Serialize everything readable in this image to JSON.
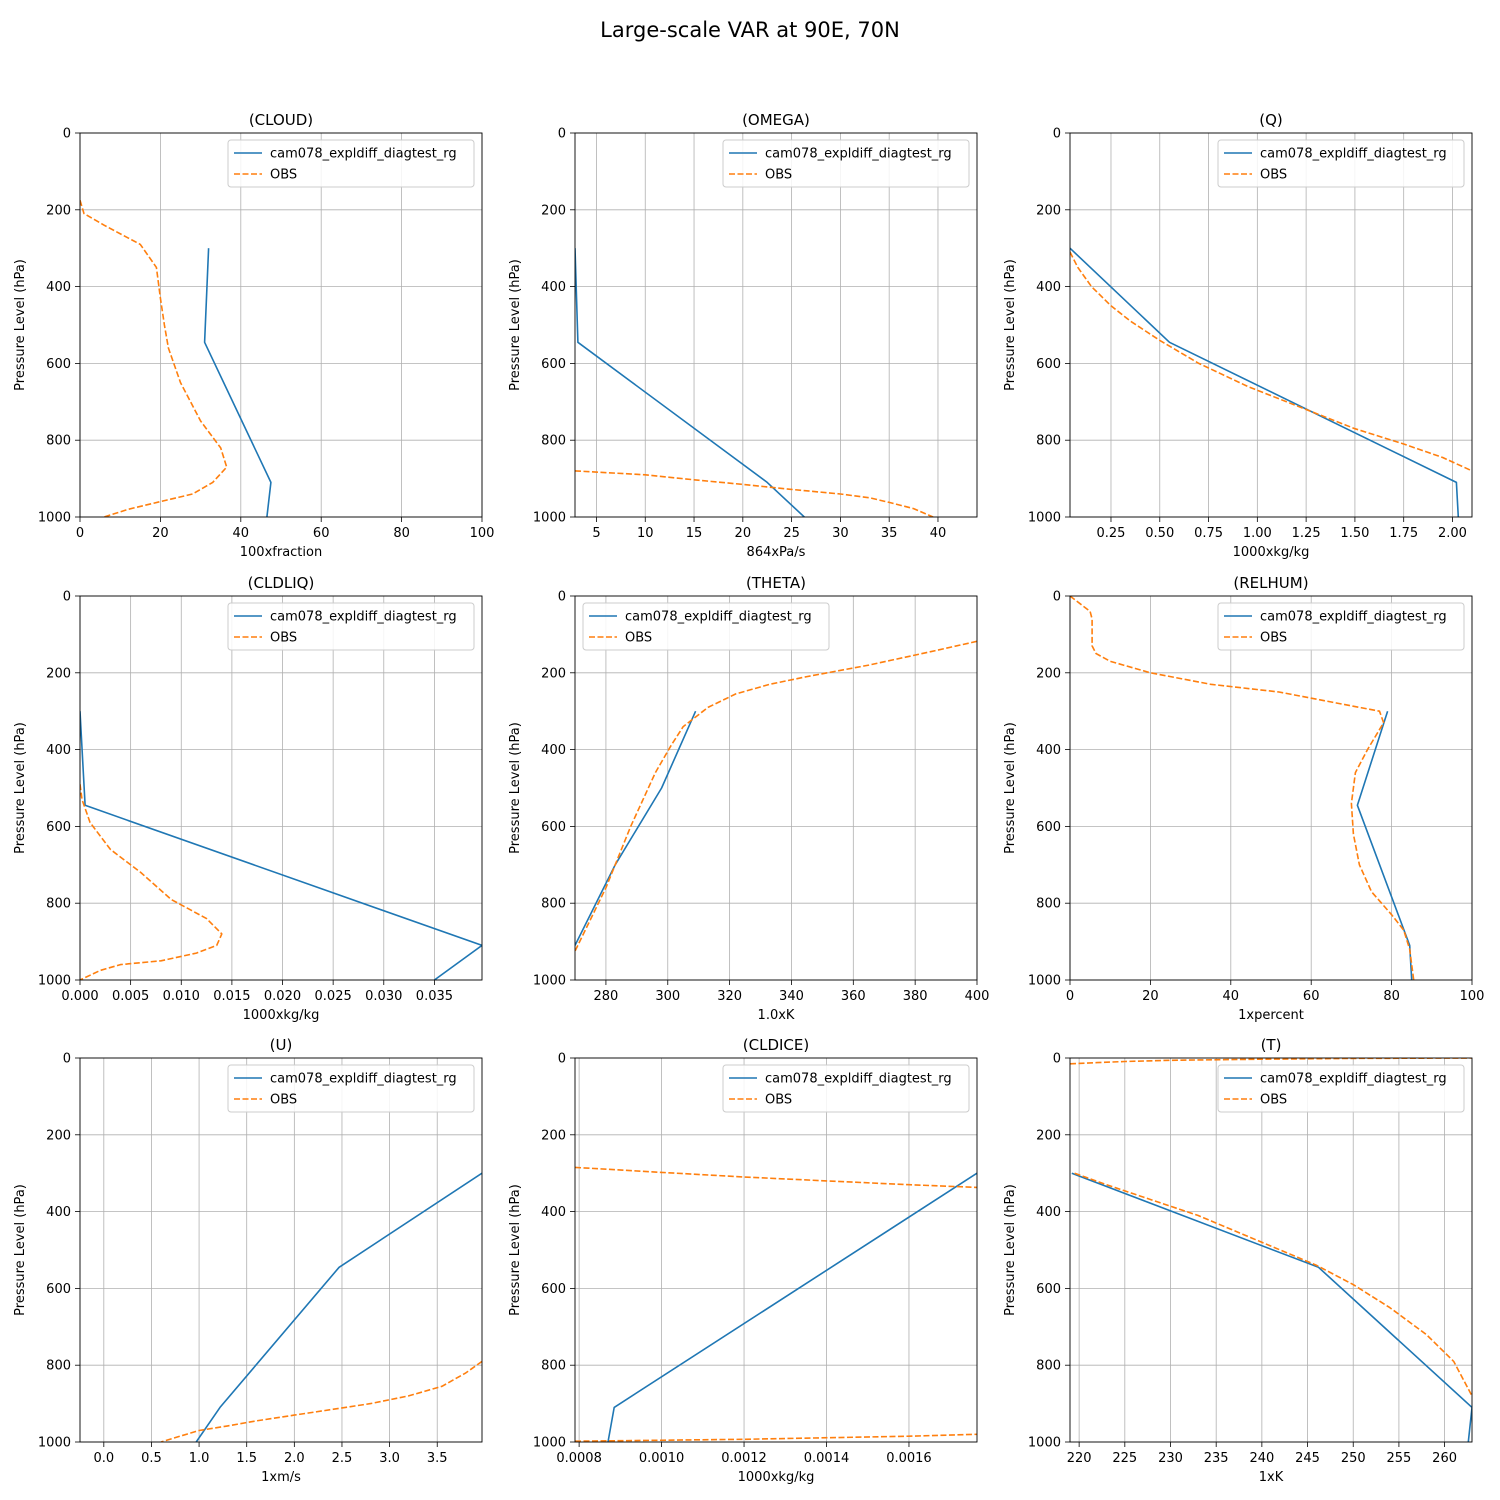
{
  "title": "Large-scale VAR at 90E, 70N",
  "colors": {
    "model": "#1f77b4",
    "obs": "#ff7f0e",
    "grid": "#b0b0b0"
  },
  "chart_data": [
    {
      "type": "line",
      "title": "(CLOUD)",
      "xlabel": "100xfraction",
      "ylabel": "Pressure Level (hPa)",
      "xlim": [
        0,
        100
      ],
      "ylim": [
        1000,
        0
      ],
      "xticks": [
        0,
        20,
        40,
        60,
        80,
        100
      ],
      "xtick_labels": [
        "0",
        "20",
        "40",
        "60",
        "80",
        "100"
      ],
      "yticks": [
        0,
        200,
        400,
        600,
        800,
        1000
      ],
      "ytick_labels": [
        "0",
        "200",
        "400",
        "600",
        "800",
        "1000"
      ],
      "legend_loc": "upper right",
      "series": [
        {
          "name": "cam078_expldiff_diagtest_rg",
          "style": "solid",
          "x": [
            32,
            31,
            47.5,
            46.5
          ],
          "y": [
            300,
            545,
            910,
            1000
          ]
        },
        {
          "name": "OBS",
          "style": "dashed",
          "x": [
            0,
            1,
            6,
            15,
            19,
            20,
            21,
            22,
            25,
            30,
            35,
            36.5,
            33,
            28,
            20,
            12,
            6
          ],
          "y": [
            175,
            210,
            240,
            290,
            350,
            430,
            500,
            560,
            650,
            750,
            820,
            870,
            910,
            940,
            960,
            980,
            1000
          ]
        }
      ]
    },
    {
      "type": "line",
      "title": "(OMEGA)",
      "xlabel": "864xPa/s",
      "ylabel": "Pressure Level (hPa)",
      "xlim": [
        2.8,
        44
      ],
      "ylim": [
        1000,
        0
      ],
      "xticks": [
        5,
        10,
        15,
        20,
        25,
        30,
        35,
        40
      ],
      "xtick_labels": [
        "5",
        "10",
        "15",
        "20",
        "25",
        "30",
        "35",
        "40"
      ],
      "yticks": [
        0,
        200,
        400,
        600,
        800,
        1000
      ],
      "ytick_labels": [
        "0",
        "200",
        "400",
        "600",
        "800",
        "1000"
      ],
      "legend_loc": "upper right",
      "series": [
        {
          "name": "cam078_expldiff_diagtest_rg",
          "style": "solid",
          "x": [
            2.8,
            3.1,
            22.5,
            26.3
          ],
          "y": [
            300,
            545,
            910,
            1000
          ]
        },
        {
          "name": "OBS",
          "style": "dashed",
          "x": [
            2.8,
            10,
            15,
            20,
            25,
            30,
            33,
            35,
            37.5,
            39.5
          ],
          "y": [
            880,
            890,
            903,
            915,
            928,
            940,
            950,
            962,
            978,
            1000
          ]
        }
      ]
    },
    {
      "type": "line",
      "title": "(Q)",
      "xlabel": "1000xkg/kg",
      "ylabel": "Pressure Level (hPa)",
      "xlim": [
        0.04,
        2.1
      ],
      "ylim": [
        1000,
        0
      ],
      "xticks": [
        0.25,
        0.5,
        0.75,
        1.0,
        1.25,
        1.5,
        1.75,
        2.0
      ],
      "xtick_labels": [
        "0.25",
        "0.50",
        "0.75",
        "1.00",
        "1.25",
        "1.50",
        "1.75",
        "2.00"
      ],
      "yticks": [
        0,
        200,
        400,
        600,
        800,
        1000
      ],
      "ytick_labels": [
        "0",
        "200",
        "400",
        "600",
        "800",
        "1000"
      ],
      "legend_loc": "upper right",
      "series": [
        {
          "name": "cam078_expldiff_diagtest_rg",
          "style": "solid",
          "x": [
            0.04,
            0.55,
            2.02,
            2.03
          ],
          "y": [
            300,
            545,
            910,
            1000
          ]
        },
        {
          "name": "OBS",
          "style": "dashed",
          "x": [
            0.04,
            0.08,
            0.15,
            0.25,
            0.35,
            0.5,
            0.7,
            0.95,
            1.25,
            1.5,
            1.75,
            1.95,
            2.1
          ],
          "y": [
            310,
            350,
            400,
            450,
            490,
            540,
            600,
            660,
            720,
            770,
            810,
            845,
            880
          ]
        }
      ]
    },
    {
      "type": "line",
      "title": "(CLDLIQ)",
      "xlabel": "1000xkg/kg",
      "ylabel": "Pressure Level (hPa)",
      "xlim": [
        0,
        0.0397
      ],
      "ylim": [
        1000,
        0
      ],
      "xticks": [
        0,
        0.005,
        0.01,
        0.015,
        0.02,
        0.025,
        0.03,
        0.035
      ],
      "xtick_labels": [
        "0.000",
        "0.005",
        "0.010",
        "0.015",
        "0.020",
        "0.025",
        "0.030",
        "0.035"
      ],
      "yticks": [
        0,
        200,
        400,
        600,
        800,
        1000
      ],
      "ytick_labels": [
        "0",
        "200",
        "400",
        "600",
        "800",
        "1000"
      ],
      "legend_loc": "upper right",
      "series": [
        {
          "name": "cam078_expldiff_diagtest_rg",
          "style": "solid",
          "x": [
            0,
            0.0005,
            0.0397,
            0.035
          ],
          "y": [
            300,
            545,
            910,
            1000
          ]
        },
        {
          "name": "OBS",
          "style": "dashed",
          "x": [
            0,
            0.0002,
            0.001,
            0.003,
            0.006,
            0.009,
            0.0125,
            0.014,
            0.0135,
            0.0115,
            0.008,
            0.004,
            0.002,
            0
          ],
          "y": [
            490,
            530,
            590,
            660,
            720,
            790,
            840,
            880,
            910,
            930,
            950,
            960,
            975,
            1000
          ]
        }
      ]
    },
    {
      "type": "line",
      "title": "(THETA)",
      "xlabel": "1.0xK",
      "ylabel": "Pressure Level (hPa)",
      "xlim": [
        270,
        400
      ],
      "ylim": [
        1000,
        0
      ],
      "xticks": [
        280,
        300,
        320,
        340,
        360,
        380,
        400
      ],
      "xtick_labels": [
        "280",
        "300",
        "320",
        "340",
        "360",
        "380",
        "400"
      ],
      "yticks": [
        0,
        200,
        400,
        600,
        800,
        1000
      ],
      "ytick_labels": [
        "0",
        "200",
        "400",
        "600",
        "800",
        "1000"
      ],
      "legend_loc": "upper left",
      "series": [
        {
          "name": "cam078_expldiff_diagtest_rg",
          "style": "solid",
          "x": [
            309,
            298,
            283,
            270
          ],
          "y": [
            300,
            500,
            700,
            910
          ]
        },
        {
          "name": "OBS",
          "style": "dashed",
          "x": [
            400,
            385,
            365,
            345,
            333,
            322,
            313,
            305,
            301,
            296,
            288,
            280,
            270
          ],
          "y": [
            118,
            145,
            180,
            210,
            230,
            255,
            290,
            340,
            390,
            460,
            600,
            760,
            925
          ]
        }
      ]
    },
    {
      "type": "line",
      "title": "(RELHUM)",
      "xlabel": "1xpercent",
      "ylabel": "Pressure Level (hPa)",
      "xlim": [
        0,
        100
      ],
      "ylim": [
        1000,
        0
      ],
      "xticks": [
        0,
        20,
        40,
        60,
        80,
        100
      ],
      "xtick_labels": [
        "0",
        "20",
        "40",
        "60",
        "80",
        "100"
      ],
      "yticks": [
        0,
        200,
        400,
        600,
        800,
        1000
      ],
      "ytick_labels": [
        "0",
        "200",
        "400",
        "600",
        "800",
        "1000"
      ],
      "legend_loc": "upper right",
      "series": [
        {
          "name": "cam078_expldiff_diagtest_rg",
          "style": "solid",
          "x": [
            79,
            71.5,
            84.5,
            85
          ],
          "y": [
            300,
            545,
            910,
            1000
          ]
        },
        {
          "name": "OBS",
          "style": "dashed",
          "x": [
            0,
            5,
            5.5,
            5.5,
            6.5,
            10,
            20,
            35,
            52,
            62,
            77,
            78,
            74,
            71,
            70,
            70.5,
            72,
            75,
            80,
            83,
            84.5,
            85.5
          ],
          "y": [
            0,
            40,
            60,
            130,
            150,
            170,
            200,
            230,
            250,
            270,
            300,
            330,
            400,
            460,
            540,
            620,
            700,
            770,
            830,
            870,
            920,
            1000
          ]
        }
      ]
    },
    {
      "type": "line",
      "title": "(U)",
      "xlabel": "1xm/s",
      "ylabel": "Pressure Level (hPa)",
      "xlim": [
        -0.25,
        3.97
      ],
      "ylim": [
        1000,
        0
      ],
      "xticks": [
        0,
        0.5,
        1.0,
        1.5,
        2.0,
        2.5,
        3.0,
        3.5
      ],
      "xtick_labels": [
        "0.0",
        "0.5",
        "1.0",
        "1.5",
        "2.0",
        "2.5",
        "3.0",
        "3.5"
      ],
      "yticks": [
        0,
        200,
        400,
        600,
        800,
        1000
      ],
      "ytick_labels": [
        "0",
        "200",
        "400",
        "600",
        "800",
        "1000"
      ],
      "legend_loc": "upper right",
      "series": [
        {
          "name": "cam078_expldiff_diagtest_rg",
          "style": "solid",
          "x": [
            3.97,
            2.47,
            1.22,
            0.97
          ],
          "y": [
            300,
            545,
            910,
            1000
          ]
        },
        {
          "name": "OBS",
          "style": "dashed",
          "x": [
            3.97,
            3.8,
            3.55,
            3.2,
            2.8,
            2.4,
            2.0,
            1.6,
            1.3,
            1.0,
            0.8,
            0.6
          ],
          "y": [
            790,
            820,
            855,
            880,
            900,
            915,
            930,
            945,
            958,
            970,
            985,
            1000
          ]
        }
      ]
    },
    {
      "type": "line",
      "title": "(CLDICE)",
      "xlabel": "1000xkg/kg",
      "ylabel": "Pressure Level (hPa)",
      "xlim": [
        0.00079,
        0.001765
      ],
      "ylim": [
        1000,
        0
      ],
      "xticks": [
        0.0008,
        0.001,
        0.0012,
        0.0014,
        0.0016
      ],
      "xtick_labels": [
        "0.0008",
        "0.0010",
        "0.0012",
        "0.0014",
        "0.0016"
      ],
      "yticks": [
        0,
        200,
        400,
        600,
        800,
        1000
      ],
      "ytick_labels": [
        "0",
        "200",
        "400",
        "600",
        "800",
        "1000"
      ],
      "legend_loc": "upper right",
      "series": [
        {
          "name": "cam078_expldiff_diagtest_rg",
          "style": "solid",
          "x": [
            0.001765,
            0.000885,
            0.00087
          ],
          "y": [
            300,
            910,
            1000
          ]
        },
        {
          "name": "OBS",
          "style": "dashed",
          "x": [
            0.00079,
            0.001,
            0.0012,
            0.0014,
            0.0016,
            0.001765
          ],
          "y": [
            285,
            298,
            310,
            320,
            330,
            337
          ]
        },
        {
          "name": "OBS",
          "style": "dashed",
          "x": [
            0.00079,
            0.0012,
            0.0016,
            0.001765
          ],
          "y": [
            998,
            993,
            985,
            980
          ]
        }
      ]
    },
    {
      "type": "line",
      "title": "(T)",
      "xlabel": "1xK",
      "ylabel": "Pressure Level (hPa)",
      "xlim": [
        219,
        263
      ],
      "ylim": [
        1000,
        0
      ],
      "xticks": [
        220,
        225,
        230,
        235,
        240,
        245,
        250,
        255,
        260
      ],
      "xtick_labels": [
        "220",
        "225",
        "230",
        "235",
        "240",
        "245",
        "250",
        "255",
        "260"
      ],
      "yticks": [
        0,
        200,
        400,
        600,
        800,
        1000
      ],
      "ytick_labels": [
        "0",
        "200",
        "400",
        "600",
        "800",
        "1000"
      ],
      "legend_loc": "upper right",
      "series": [
        {
          "name": "cam078_expldiff_diagtest_rg",
          "style": "solid",
          "x": [
            219.2,
            246.2,
            263,
            262.6
          ],
          "y": [
            300,
            545,
            910,
            1000
          ]
        },
        {
          "name": "OBS",
          "style": "dashed",
          "x": [
            219,
            222,
            225,
            230,
            240,
            250,
            263
          ],
          "y": [
            15,
            12,
            9,
            6,
            3,
            1,
            0
          ]
        },
        {
          "name": "OBS",
          "style": "dashed",
          "x": [
            219.5,
            223,
            228,
            233,
            238,
            243,
            246,
            250,
            254,
            258,
            261,
            263
          ],
          "y": [
            300,
            330,
            370,
            410,
            460,
            510,
            540,
            590,
            650,
            720,
            790,
            880
          ]
        }
      ]
    }
  ]
}
